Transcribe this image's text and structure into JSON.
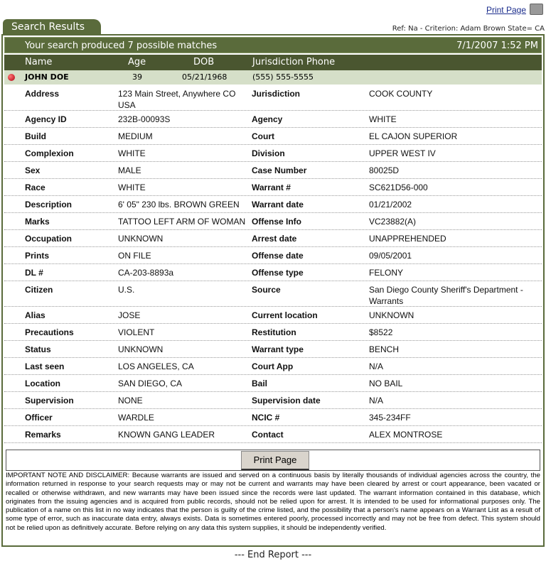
{
  "top": {
    "print_label": "Print Page",
    "tab": "Search Results",
    "ref": "Ref: Na - Criterion: Adam Brown State= CA"
  },
  "summary": {
    "text": "Your search produced 7 possible matches",
    "datetime": "7/1/2007 1:52 PM"
  },
  "columns": {
    "name": "Name",
    "age": "Age",
    "dob": "DOB",
    "phone": "Jurisdiction Phone"
  },
  "record": {
    "name": "JOHN DOE",
    "age": "39",
    "dob": "05/21/1968",
    "phone": "(555) 555-5555",
    "status_color": "#c0001a"
  },
  "details": [
    [
      "Address",
      "123 Main Street, Anywhere CO USA",
      "Jurisdiction",
      "COOK COUNTY"
    ],
    [
      "Agency ID",
      "232B-00093S",
      "Agency",
      "WHITE"
    ],
    [
      "Build",
      "MEDIUM",
      "Court",
      "EL CAJON SUPERIOR"
    ],
    [
      "Complexion",
      "WHITE",
      "Division",
      "UPPER WEST IV"
    ],
    [
      "Sex",
      "MALE",
      "Case Number",
      "80025D"
    ],
    [
      "Race",
      "WHITE",
      "Warrant #",
      "SC621D56-000"
    ],
    [
      "Description",
      "6' 05\" 230 lbs. BROWN GREEN",
      "Warrant date",
      "01/21/2002"
    ],
    [
      "Marks",
      "TATTOO LEFT ARM OF WOMAN",
      "Offense Info",
      "VC23882(A)"
    ],
    [
      "Occupation",
      "UNKNOWN",
      "Arrest date",
      "UNAPPREHENDED"
    ],
    [
      "Prints",
      "ON FILE",
      "Offense date",
      "09/05/2001"
    ],
    [
      "DL #",
      "CA-203-8893a",
      "Offense type",
      "FELONY"
    ],
    [
      "Citizen",
      "U.S.",
      "Source",
      "San Diego County Sheriff's Department - Warrants"
    ],
    [
      "Alias",
      "JOSE",
      "Current location",
      "UNKNOWN"
    ],
    [
      "Precautions",
      "VIOLENT",
      "Restitution",
      "$8522"
    ],
    [
      "Status",
      "UNKNOWN",
      "Warrant type",
      "BENCH"
    ],
    [
      "Last seen",
      "LOS ANGELES, CA",
      "Court App",
      "N/A"
    ],
    [
      "Location",
      "SAN DIEGO, CA",
      "Bail",
      "NO BAIL"
    ],
    [
      "Supervision",
      "NONE",
      "Supervision date",
      "N/A"
    ],
    [
      "Officer",
      "WARDLE",
      "NCIC #",
      "345-234FF"
    ],
    [
      "Remarks",
      "KNOWN GANG LEADER",
      "Contact",
      "ALEX MONTROSE"
    ]
  ],
  "print_button": "Print Page",
  "disclaimer": "IMPORTANT NOTE AND DISCLAIMER: Because warrants are issued and served on a continuous basis by literally thousands of individual agencies across the country, the information returned in response to your search requests may or may not be current and warrants may have been cleared by arrest or court appearance, been vacated or recalled or otherwise withdrawn, and new warrants may have been issued since the records were last updated. The warrant information contained in this database, which originates from the issuing agencies and is acquired from public records, should not be relied upon for arrest. It is intended to be used for informational purposes only. The publication of a name on this list in no way indicates that the person is guilty of the crime listed, and the possibility that a person's name appears on a Warrant List as a result of some type of error, such as inaccurate data entry, always exists. Data is sometimes entered poorly, processed incorrectly and may not be free from defect. This system should not be relied upon as definitively accurate. Before relying on any data this system supplies, it should be independently verified.",
  "end": "--- End Report ---"
}
